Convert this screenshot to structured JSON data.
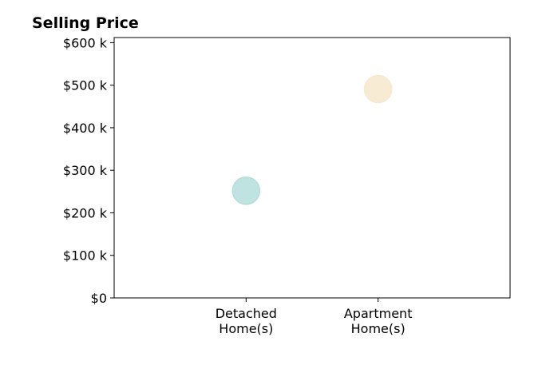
{
  "chart_data": {
    "type": "scatter",
    "title": "Selling Price",
    "xlabel": "",
    "ylabel": "",
    "categories": [
      [
        "Detached",
        "Home(s)"
      ],
      [
        "Apartment",
        "Home(s)"
      ]
    ],
    "points": [
      {
        "category_index": 0,
        "value": 252000,
        "color": "#b3dedb"
      },
      {
        "category_index": 1,
        "value": 491000,
        "color": "#f7e8cd"
      }
    ],
    "ylim": [
      0,
      612000
    ],
    "xlim": [
      -1,
      2
    ],
    "yticks": [
      0,
      100000,
      200000,
      300000,
      400000,
      500000,
      600000
    ],
    "ytick_labels": [
      "$0",
      "$100 k",
      "$200 k",
      "$300 k",
      "$400 k",
      "$500 k",
      "$600 k"
    ],
    "grid": false,
    "legend": "none"
  }
}
